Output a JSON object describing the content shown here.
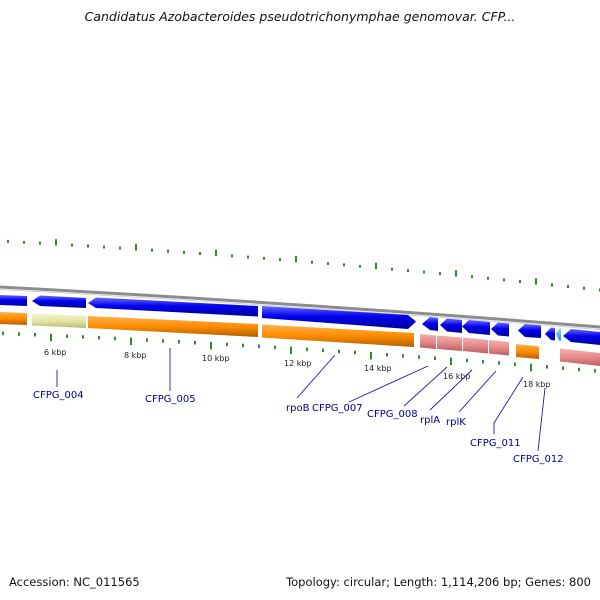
{
  "title": "Candidatus Azobacteroides pseudotrichonymphae genomovar. CFP...",
  "footer": {
    "accession": "Accession: NC_011565",
    "summary": "Topology: circular; Length: 1,114,206 bp; Genes: 800"
  },
  "colors": {
    "backbone": "#8c8c8c",
    "cds_forward": "#0000ee",
    "cds_forward_light": "#40b0ff",
    "cds_reverse": "#ff8c00",
    "reverse_pink": "#e88a8a",
    "reverse_pale": "#e6e6a6",
    "tick": "#2e8b2e",
    "label": "#00008b"
  },
  "scale_labels": [
    "6 kbp",
    "8 kbp",
    "10 kbp",
    "12 kbp",
    "14 kbp",
    "16 kbp",
    "18 kbp"
  ],
  "gene_labels": [
    "CFPG_004",
    "CFPG_005",
    "rpoB",
    "CFPG_007",
    "CFPG_008",
    "rplA",
    "rplK",
    "CFPG_011",
    "CFPG_012"
  ]
}
